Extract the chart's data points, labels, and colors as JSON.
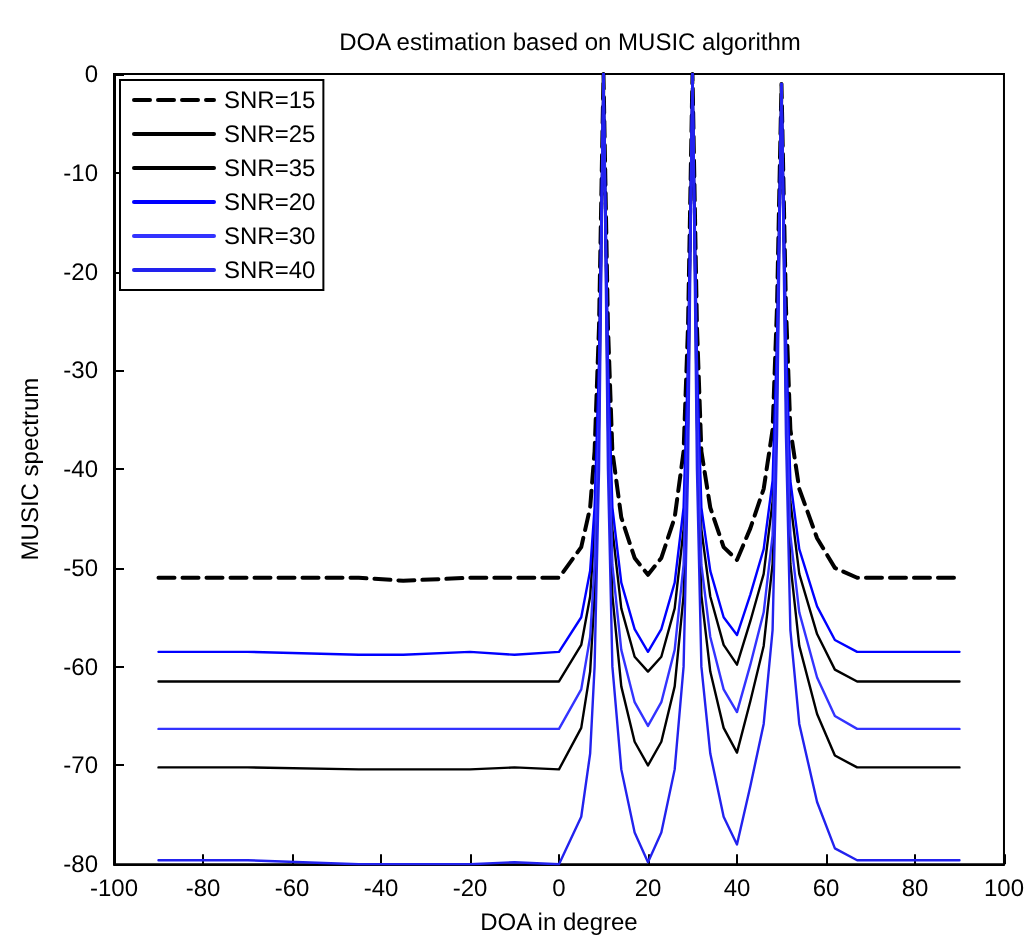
{
  "chart_data": {
    "type": "line",
    "title": "DOA estimation based on MUSIC algorithm",
    "xlabel": "DOA in degree",
    "ylabel": "MUSIC spectrum",
    "x": [
      -90,
      -70,
      -45,
      -35,
      -20,
      -10,
      0,
      5,
      7,
      8,
      9,
      10,
      11,
      12,
      14,
      17,
      20,
      23,
      26,
      28,
      29,
      30,
      31,
      32,
      34,
      37,
      40,
      43,
      46,
      48,
      49,
      50,
      51,
      52,
      54,
      58,
      62,
      67,
      90
    ],
    "series": [
      {
        "name": "SNR=15",
        "color": "#000000",
        "line_style": "dashed",
        "values": [
          -51,
          -51,
          -51,
          -51.3,
          -51,
          -51,
          -51,
          -47.9,
          -43.9,
          -38.2,
          -25.5,
          0,
          -25.5,
          -38.2,
          -44.9,
          -49,
          -50.7,
          -49,
          -44.9,
          -38.2,
          -25.5,
          0,
          -25.5,
          -38.2,
          -43.9,
          -47.9,
          -49.2,
          -46,
          -42,
          -36,
          -23.5,
          -1,
          -23.5,
          -36,
          -42,
          -47,
          -50,
          -51,
          -51
        ]
      },
      {
        "name": "SNR=25",
        "color": "#000000",
        "values": [
          -61.5,
          -61.5,
          -61.5,
          -61.5,
          -61.5,
          -61.5,
          -61.5,
          -57.8,
          -52.9,
          -46.1,
          -30.7,
          0,
          -30.7,
          -46.1,
          -54.1,
          -59,
          -60.5,
          -59,
          -54.1,
          -46.1,
          -30.7,
          0,
          -30.7,
          -46.1,
          -52.9,
          -57.8,
          -59.8,
          -55.4,
          -50.6,
          -43.3,
          -28.2,
          -1,
          -28.2,
          -43.3,
          -50.6,
          -56.7,
          -60.3,
          -61.5,
          -61.5
        ]
      },
      {
        "name": "SNR=35",
        "color": "#000000",
        "values": [
          -70.2,
          -70.2,
          -70.4,
          -70.4,
          -70.4,
          -70.2,
          -70.4,
          -66.2,
          -60.5,
          -52.8,
          -35.2,
          0,
          -35.2,
          -52.8,
          -62,
          -67.6,
          -70,
          -67.6,
          -62,
          -52.8,
          -35.2,
          0,
          -35.2,
          -52.8,
          -60.5,
          -66.2,
          -68.7,
          -63.5,
          -57.9,
          -49.6,
          -32.2,
          -1,
          -32.2,
          -49.6,
          -57.9,
          -64.8,
          -69,
          -70.2,
          -70.2
        ]
      },
      {
        "name": "SNR=20",
        "color": "#0000ff",
        "values": [
          -58.5,
          -58.5,
          -58.8,
          -58.8,
          -58.5,
          -58.8,
          -58.5,
          -55,
          -50.3,
          -43.9,
          -29.2,
          0,
          -29.2,
          -43.9,
          -51.5,
          -56.2,
          -58.5,
          -56.2,
          -51.5,
          -43.9,
          -29.2,
          0,
          -29.2,
          -43.9,
          -50.3,
          -55,
          -56.8,
          -52.7,
          -48.1,
          -41.2,
          -26.9,
          -1,
          -26.9,
          -41.2,
          -48.1,
          -53.9,
          -57.3,
          -58.5,
          -58.5
        ]
      },
      {
        "name": "SNR=30",
        "color": "#3333ff",
        "values": [
          -66.3,
          -66.3,
          -66.3,
          -66.3,
          -66.3,
          -66.3,
          -66.3,
          -62.3,
          -57,
          -49.7,
          -33.1,
          0,
          -33.1,
          -49.7,
          -58.3,
          -63.6,
          -66,
          -63.6,
          -58.3,
          -49.7,
          -33.1,
          0,
          -33.1,
          -49.7,
          -57,
          -62.3,
          -64.6,
          -59.8,
          -54.5,
          -46.7,
          -30.4,
          -1,
          -30.4,
          -46.7,
          -54.5,
          -61.1,
          -65,
          -66.3,
          -66.3
        ]
      },
      {
        "name": "SNR=40",
        "color": "#2222ee",
        "values": [
          -79.6,
          -79.6,
          -80,
          -80,
          -80,
          -79.8,
          -80,
          -75.2,
          -68.8,
          -60,
          -40,
          0,
          -40,
          -60,
          -70.4,
          -76.8,
          -79.8,
          -76.8,
          -70.4,
          -60,
          -40,
          0,
          -40,
          -60,
          -68.8,
          -75.2,
          -78,
          -72.1,
          -65.8,
          -56.3,
          -36.5,
          -1,
          -36.5,
          -56.3,
          -65.8,
          -73.7,
          -78.4,
          -79.6,
          -79.6
        ]
      }
    ],
    "xlim": [
      -100,
      100
    ],
    "xticks": [
      -100,
      -80,
      -60,
      -40,
      -20,
      0,
      20,
      40,
      60,
      80,
      100
    ],
    "ylim": [
      -80,
      0
    ],
    "yticks": [
      -80,
      -70,
      -60,
      -50,
      -40,
      -30,
      -20,
      -10,
      0
    ],
    "grid": false,
    "legend": "top left",
    "marker": "none",
    "line_style": "solid"
  }
}
